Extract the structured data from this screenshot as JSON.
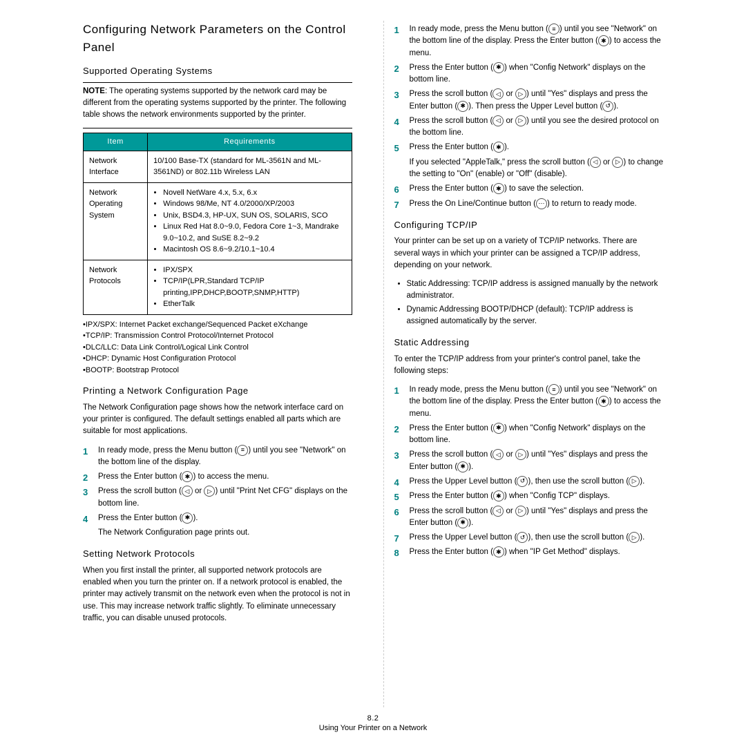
{
  "accent_color": "#009999",
  "heading": "Configuring Network Parameters on the Control Panel",
  "left": {
    "supported_h": "Supported Operating Systems",
    "note_label": "NOTE",
    "note_body": ": The operating systems supported by the network card may be different from the operating systems supported by the printer. The following table shows the network environments supported by the printer.",
    "table": {
      "th_item": "Item",
      "th_req": "Requirements",
      "rows": [
        {
          "item": "Network Interface",
          "req_plain": "10/100 Base-TX (standard for ML-3561N and ML-3561ND) or 802.11b Wireless LAN"
        },
        {
          "item": "Network Operating System",
          "req_list": [
            "Novell NetWare 4.x, 5.x, 6.x",
            "Windows 98/Me, NT 4.0/2000/XP/2003",
            "Unix, BSD4.3, HP-UX, SUN OS, SOLARIS, SCO",
            "Linux Red Hat 8.0~9.0, Fedora Core 1~3, Mandrake 9.0~10.2, and SuSE 8.2~9.2",
            "Macintosh OS 8.6~9.2/10.1~10.4"
          ]
        },
        {
          "item": "Network Protocols",
          "req_list": [
            "IPX/SPX",
            "TCP/IP(LPR,Standard TCP/IP printing,IPP,DHCP,BOOTP,SNMP,HTTP)",
            "EtherTalk"
          ]
        }
      ]
    },
    "defs": [
      "•IPX/SPX: Internet Packet exchange/Sequenced Packet eXchange",
      "•TCP/IP: Transmission Control Protocol/Internet Protocol",
      "•DLC/LLC: Data Link Control/Logical Link Control",
      "•DHCP: Dynamic Host Configuration Protocol",
      "•BOOTP: Bootstrap Protocol"
    ],
    "print_h": "Printing a Network Configuration Page",
    "print_intro": "The Network Configuration page shows how the network interface card on your printer is configured. The default settings enabled all parts which are suitable for most applications.",
    "print_steps": [
      {
        "n": "1",
        "pre": "In ready mode, press the Menu button (",
        "icon": "menu",
        "post": ") until you see \"Network\" on the bottom line of the display."
      },
      {
        "n": "2",
        "pre": "Press the Enter button (",
        "icon": "enter",
        "post": ") to access the menu."
      },
      {
        "n": "3",
        "pre": "Press the scroll button (",
        "icon2": [
          "left",
          "right"
        ],
        "post": ") until \"Print Net CFG\" displays on the bottom line."
      },
      {
        "n": "4",
        "pre": "Press the Enter button (",
        "icon": "enter",
        "post": ").",
        "after": "The Network Configuration page prints out."
      }
    ],
    "set_h": "Setting Network Protocols",
    "set_intro": "When you first install the printer, all supported network protocols are enabled when you turn the printer on. If a network protocol is enabled, the printer may actively transmit on the network even when the protocol is not in use. This may increase network traffic slightly. To eliminate unnecessary traffic, you can disable unused protocols."
  },
  "right": {
    "proto_steps": [
      {
        "n": "1",
        "pre": "In ready mode, press the Menu button (",
        "icon": "menu",
        "post": ") until you see \"Network\" on the bottom line of the display. Press the Enter button (",
        "icon3": "enter",
        "post3": ") to access the menu."
      },
      {
        "n": "2",
        "pre": "Press the Enter button (",
        "icon": "enter",
        "post": ") when \"Config Network\" displays on the bottom line."
      },
      {
        "n": "3",
        "pre": "Press the scroll button (",
        "icon2": [
          "left",
          "right"
        ],
        "post": ") until \"Yes\" displays and press the Enter button (",
        "icon3": "enter",
        "post3": "). Then press the Upper Level button (",
        "icon4": "up",
        "post4": ")."
      },
      {
        "n": "4",
        "pre": "Press the scroll button (",
        "icon2": [
          "left",
          "right"
        ],
        "post": ") until you see the desired protocol on the bottom line."
      },
      {
        "n": "5",
        "pre": "Press the Enter button (",
        "icon": "enter",
        "post": ").",
        "after_complex": true
      },
      {
        "n": "6",
        "pre": "Press the Enter button (",
        "icon": "enter",
        "post": ") to save the selection."
      },
      {
        "n": "7",
        "pre": "Press the On Line/Continue button (",
        "icon": "online",
        "post": ") to return to ready mode."
      }
    ],
    "step5_after_pre": "If you selected \"AppleTalk,\" press the scroll button (",
    "step5_after_mid": ") to change the setting to \"On\" (enable) or \"Off\" (disable).",
    "tcp_h": "Configuring TCP/IP",
    "tcp_intro": "Your printer can be set up on a variety of TCP/IP networks. There are several ways in which your printer can be assigned a TCP/IP address, depending on your network.",
    "tcp_bullets": [
      "Static Addressing:  TCP/IP address is assigned manually by the network administrator.",
      "Dynamic Addressing BOOTP/DHCP (default):  TCP/IP address is assigned automatically by the server."
    ],
    "static_h": "Static Addressing",
    "static_intro": "To enter the TCP/IP address from your printer's control panel, take the following steps:",
    "static_steps": [
      {
        "n": "1",
        "pre": "In ready mode, press the Menu button (",
        "icon": "menu",
        "post": ") until you see \"Network\" on the bottom line of the display. Press the Enter button (",
        "icon3": "enter",
        "post3": ") to access the menu."
      },
      {
        "n": "2",
        "pre": "Press the Enter button (",
        "icon": "enter",
        "post": ") when \"Config Network\" displays on the bottom line."
      },
      {
        "n": "3",
        "pre": "Press the scroll button (",
        "icon2": [
          "left",
          "right"
        ],
        "post": ") until \"Yes\" displays and press the Enter button (",
        "icon3": "enter",
        "post3": ")."
      },
      {
        "n": "4",
        "pre": "Press the Upper Level button (",
        "icon": "up",
        "post": "), then use the scroll button (",
        "icon3": "right",
        "post3": ")."
      },
      {
        "n": "5",
        "pre": "Press the Enter button (",
        "icon": "enter",
        "post": ") when \"Config TCP\" displays."
      },
      {
        "n": "6",
        "pre": "Press the scroll button (",
        "icon2": [
          "left",
          "right"
        ],
        "post": ") until \"Yes\" displays and press the Enter button (",
        "icon3": "enter",
        "post3": ")."
      },
      {
        "n": "7",
        "pre": "Press the Upper Level button (",
        "icon": "up",
        "post": "), then use the scroll button  (",
        "icon3": "right",
        "post3": ")."
      },
      {
        "n": "8",
        "pre": "Press the Enter button (",
        "icon": "enter",
        "post": ") when \"IP Get Method\" displays."
      }
    ]
  },
  "footer": {
    "page": "8.2",
    "title": "Using Your Printer on a Network"
  },
  "icons": {
    "menu": "≡",
    "enter": "✱",
    "left": "◁",
    "right": "▷",
    "up": "↺",
    "online": "⋯"
  }
}
